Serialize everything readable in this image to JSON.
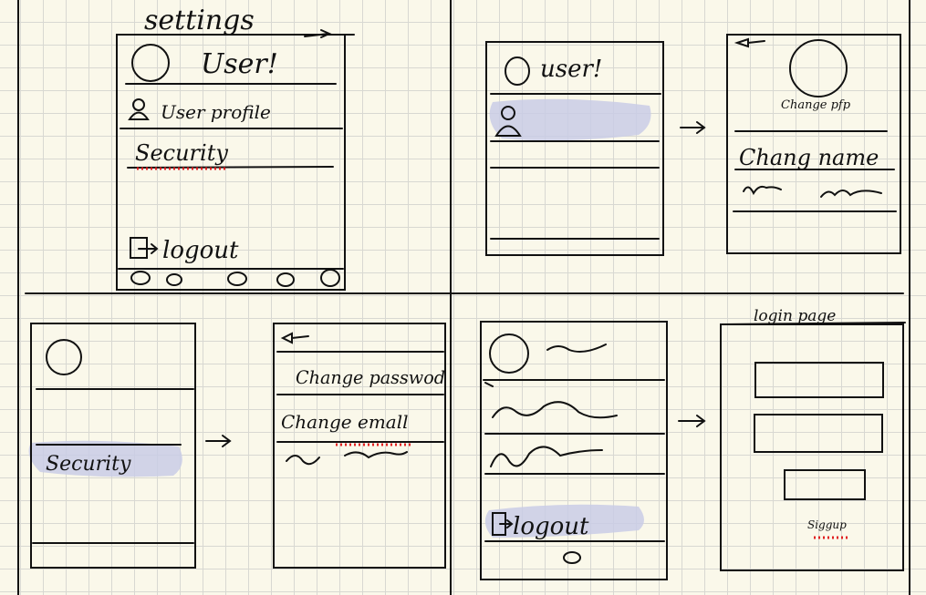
{
  "panel1": {
    "title": "settings",
    "user_greeting": "User!",
    "menu": {
      "profile": "User profile",
      "security": "Security",
      "logout": "logout"
    }
  },
  "panel2": {
    "user_greeting": "user!",
    "profile_screen": {
      "change_pfp": "Change pfp",
      "change_name": "Chang name"
    }
  },
  "panel3": {
    "security_item": "Security",
    "security_screen": {
      "change_password": "Change passwod",
      "change_email": "Change emall"
    }
  },
  "panel4": {
    "logout_item": "logout",
    "login_screen": {
      "title": "login page",
      "signup": "Siggup"
    }
  },
  "colors": {
    "ink": "#111111",
    "highlight": "#c9cde6",
    "spellcheck": "#e02020",
    "paper": "#faf8ea",
    "grid": "#d8d8d2"
  }
}
